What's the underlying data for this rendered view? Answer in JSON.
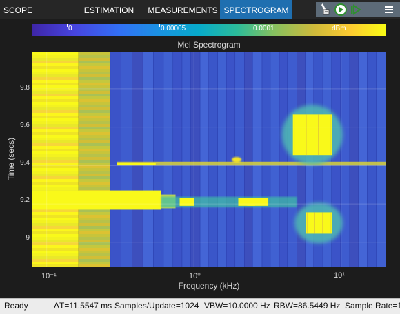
{
  "tabs": [
    {
      "label": "SCOPE",
      "active": false
    },
    {
      "label": "ESTIMATION",
      "active": false
    },
    {
      "label": "MEASUREMENTS",
      "active": false
    },
    {
      "label": "SPECTROGRAM",
      "active": true
    }
  ],
  "toolbar_icons": [
    "signal-probe-icon",
    "run-icon",
    "step-forward-icon",
    "menu-icon"
  ],
  "colorbar": {
    "ticks": [
      "0",
      "0.00005",
      "0.0001",
      "dBm"
    ],
    "colormap": "parula"
  },
  "chart_data": {
    "type": "heatmap",
    "title": "Mel Spectrogram",
    "xlabel": "Frequency (kHz)",
    "ylabel": "Time (secs)",
    "xscale": "log",
    "xlim": [
      0.08,
      20
    ],
    "ylim": [
      8.87,
      9.99
    ],
    "xticks": [
      "10⁻¹",
      "10⁰",
      "10¹"
    ],
    "yticks": [
      "9",
      "9.2",
      "9.4",
      "9.6",
      "9.8"
    ],
    "grid": true,
    "colorbar_units": "dBm",
    "features": [
      {
        "name": "low-band",
        "x": [
          0.08,
          0.27
        ],
        "y": [
          8.87,
          9.99
        ],
        "level": "high"
      },
      {
        "name": "broadband-event",
        "x": [
          0.27,
          0.6
        ],
        "y": [
          9.17,
          9.27
        ],
        "level": "high"
      },
      {
        "name": "line-9.41s",
        "x": [
          0.3,
          20
        ],
        "y": [
          9.4,
          9.42
        ],
        "level": "medium"
      },
      {
        "name": "harmonics-9.21s",
        "x": [
          0.6,
          5
        ],
        "y": [
          9.19,
          9.23
        ],
        "level": "medium"
      },
      {
        "name": "blob-upper",
        "x": [
          4.5,
          9
        ],
        "y": [
          9.44,
          9.68
        ],
        "level": "high"
      },
      {
        "name": "blob-lower",
        "x": [
          5.5,
          9
        ],
        "y": [
          9.03,
          9.17
        ],
        "level": "high"
      }
    ]
  },
  "status": {
    "state": "Ready",
    "delta_t": "ΔT=11.5547 ms",
    "samples": "Samples/Update=1024",
    "vbw": "VBW=10.0000 Hz",
    "rbw": "RBW=86.5449 Hz",
    "sample_rate": "Sample Rate=1"
  },
  "colors": {
    "toolstrip_bg": "#262626",
    "active_tab": "#1f6fb0",
    "background": "#3a52c4",
    "high": "#f9f91a",
    "status_bg": "#ececec"
  }
}
